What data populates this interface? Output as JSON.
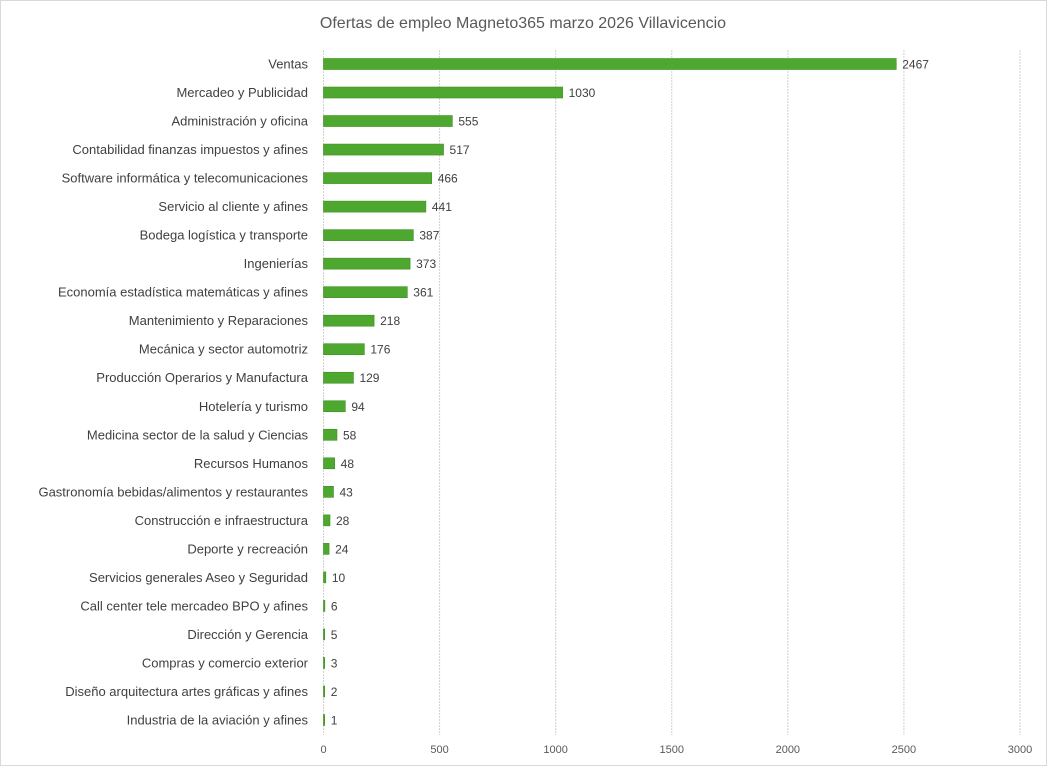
{
  "chart_data": {
    "type": "bar",
    "orientation": "horizontal",
    "title": "Ofertas de empleo Magneto365 marzo 2026 Villavicencio",
    "xlabel": "",
    "ylabel": "",
    "xlim": [
      0,
      3000
    ],
    "xticks": [
      0,
      500,
      1000,
      1500,
      2000,
      2500,
      3000
    ],
    "grid": true,
    "legend": "none",
    "bar_color": "#4ea72e",
    "categories": [
      "Ventas",
      "Mercadeo y Publicidad",
      "Administración y oficina",
      "Contabilidad finanzas impuestos y afines",
      "Software informática y telecomunicaciones",
      "Servicio al cliente y afines",
      "Bodega logística y transporte",
      "Ingenierías",
      "Economía estadística matemáticas y afines",
      "Mantenimiento y Reparaciones",
      "Mecánica y sector automotriz",
      "Producción Operarios y Manufactura",
      "Hotelería y turismo",
      "Medicina sector de la salud y Ciencias",
      "Recursos Humanos",
      "Gastronomía bebidas/alimentos y restaurantes",
      "Construcción e infraestructura",
      "Deporte y recreación",
      "Servicios generales Aseo y Seguridad",
      "Call center tele mercadeo BPO y afines",
      "Dirección y Gerencia",
      "Compras y comercio exterior",
      "Diseño arquitectura artes gráficas y afines",
      "Industria de la aviación y afines"
    ],
    "values": [
      2467,
      1030,
      555,
      517,
      466,
      441,
      387,
      373,
      361,
      218,
      176,
      129,
      94,
      58,
      48,
      43,
      28,
      24,
      10,
      6,
      5,
      3,
      2,
      1
    ]
  }
}
